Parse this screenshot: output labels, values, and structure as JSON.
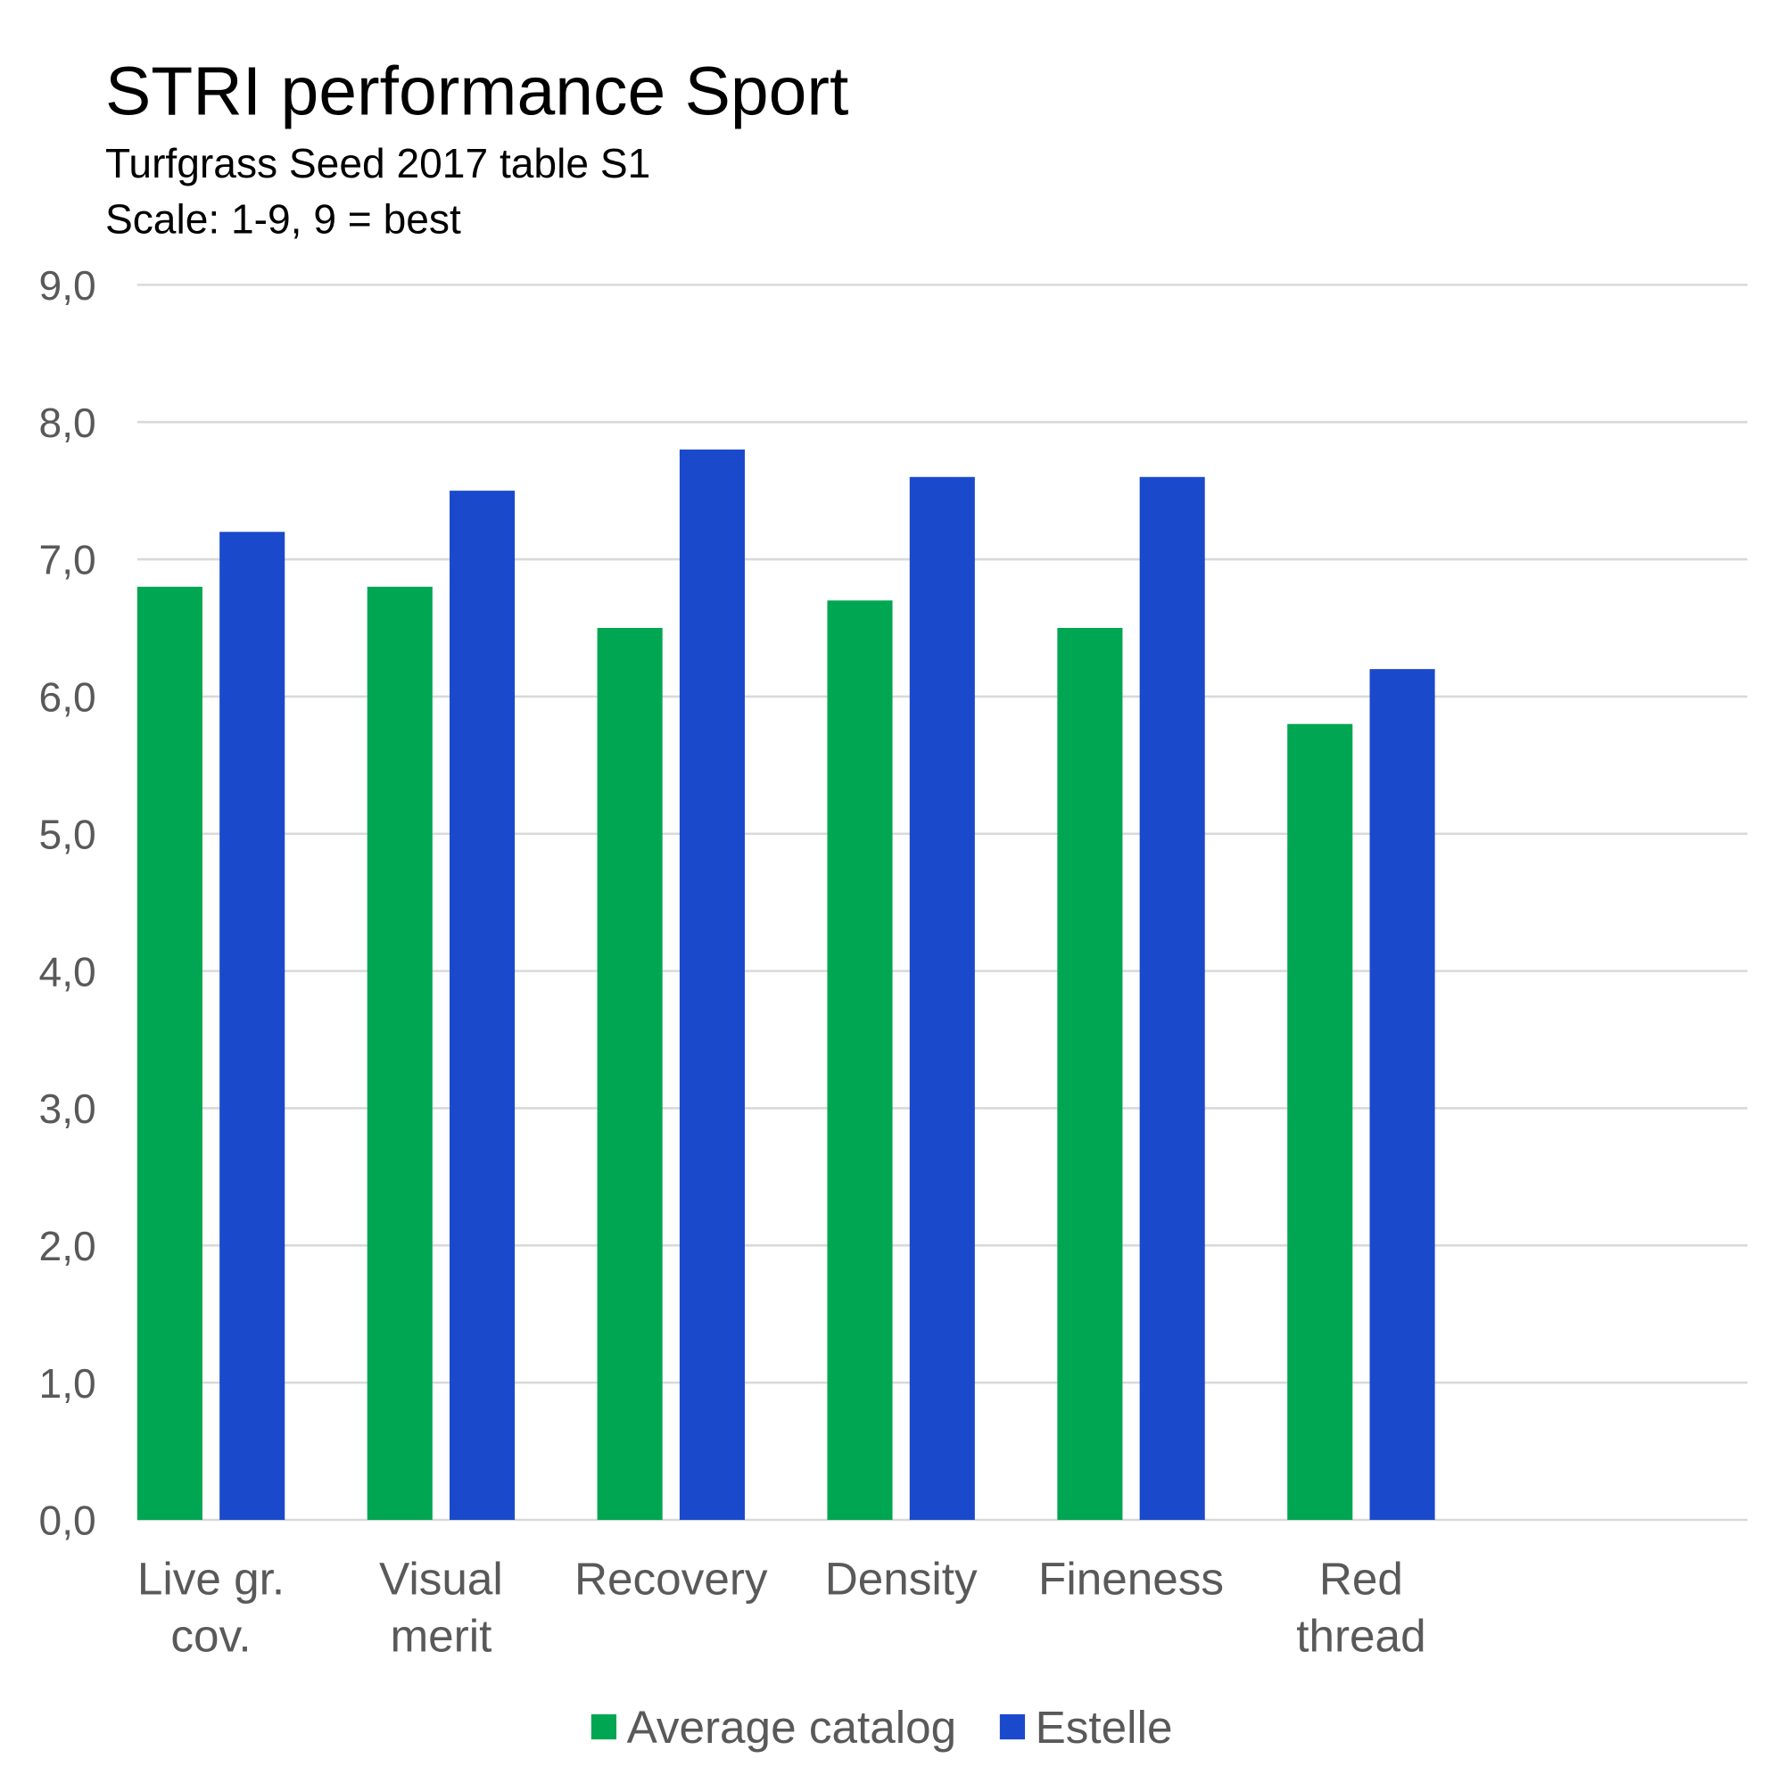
{
  "chart_data": {
    "type": "bar",
    "title": "STRI performance Sport",
    "subtitle_lines": [
      "Turfgrass Seed 2017 table S1",
      "Scale: 1-9, 9 = best"
    ],
    "categories": [
      [
        "Live gr.",
        "cov."
      ],
      [
        "Visual",
        "merit"
      ],
      [
        "Recovery"
      ],
      [
        "Density"
      ],
      [
        "Fineness"
      ],
      [
        "Red",
        "thread"
      ],
      []
    ],
    "series": [
      {
        "name": "Average catalog",
        "color": "#00A651",
        "values": [
          6.8,
          6.8,
          6.5,
          6.7,
          6.5,
          5.8,
          null
        ]
      },
      {
        "name": "Estelle",
        "color": "#1A49CC",
        "values": [
          7.2,
          7.5,
          7.8,
          7.6,
          7.6,
          6.2,
          null
        ]
      }
    ],
    "ylim": [
      0,
      9
    ],
    "yticks": [
      "0,0",
      "1,0",
      "2,0",
      "3,0",
      "4,0",
      "5,0",
      "6,0",
      "7,0",
      "8,0",
      "9,0"
    ],
    "grid": true,
    "legend_position": "bottom",
    "xlabel": "",
    "ylabel": ""
  }
}
